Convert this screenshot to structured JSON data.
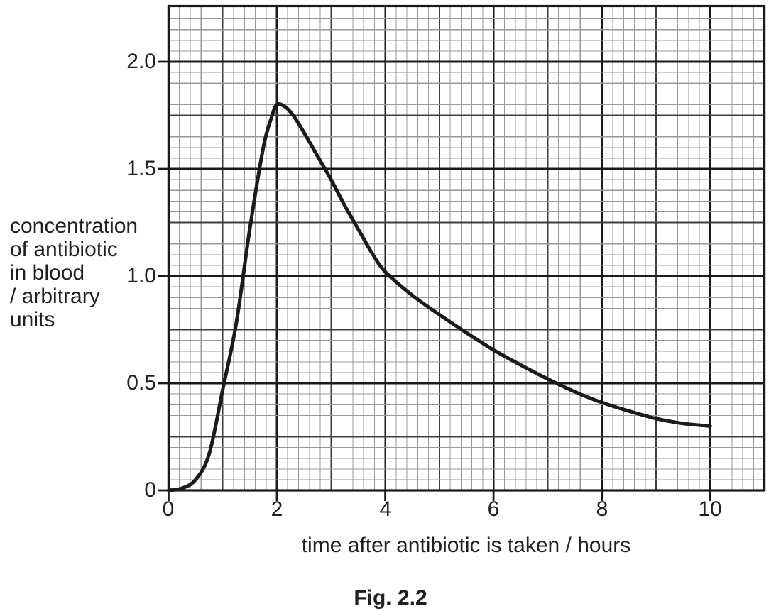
{
  "figure_caption": "Fig. 2.2",
  "colors": {
    "background": "#ffffff",
    "text": "#231f20",
    "curve": "#1c1a1b",
    "grid_minor": "#999999",
    "grid_medium": "#3d3d3d",
    "grid_major": "#1a1a1a",
    "frame": "#1a1a1a"
  },
  "chart_data": {
    "type": "line",
    "title": "",
    "xlabel": "time after antibiotic is taken / hours",
    "ylabel": "concentration of antibiotic in blood / arbitrary units",
    "ylabel_lines": [
      "concentration",
      "of antibiotic",
      "in blood",
      "/ arbitrary",
      "units"
    ],
    "caption": "Fig. 2.2",
    "xlim": [
      0,
      11
    ],
    "ylim": [
      0,
      2.26
    ],
    "x_tick_values": [
      0,
      2,
      4,
      6,
      8,
      10
    ],
    "x_tick_labels": [
      "0",
      "2",
      "4",
      "6",
      "8",
      "10"
    ],
    "y_tick_values": [
      2.0,
      1.5,
      1.0,
      0.5,
      0
    ],
    "y_tick_labels": [
      "2.0",
      "1.5",
      "1.0",
      "0.5",
      "0"
    ],
    "grid": {
      "visible": true,
      "x_minor_step": 0.2,
      "x_medium_step": 1,
      "x_major_step": 2,
      "y_minor_step": 0.05,
      "y_medium_step": 0.25,
      "y_major_step": 0.5
    },
    "legend": "none",
    "series": [
      {
        "name": "concentration of antibiotic in blood",
        "points": [
          [
            0,
            0
          ],
          [
            0.25,
            0.01
          ],
          [
            0.5,
            0.05
          ],
          [
            0.75,
            0.17
          ],
          [
            1,
            0.47
          ],
          [
            1.25,
            0.78
          ],
          [
            1.5,
            1.22
          ],
          [
            1.75,
            1.6
          ],
          [
            1.9,
            1.74
          ],
          [
            2,
            1.8
          ],
          [
            2.15,
            1.79
          ],
          [
            2.3,
            1.75
          ],
          [
            2.5,
            1.67
          ],
          [
            2.75,
            1.56
          ],
          [
            3,
            1.45
          ],
          [
            3.25,
            1.33
          ],
          [
            3.5,
            1.22
          ],
          [
            3.75,
            1.11
          ],
          [
            4,
            1.02
          ],
          [
            4.5,
            0.91
          ],
          [
            5,
            0.82
          ],
          [
            5.5,
            0.735
          ],
          [
            6,
            0.655
          ],
          [
            6.5,
            0.585
          ],
          [
            7,
            0.52
          ],
          [
            7.5,
            0.46
          ],
          [
            8,
            0.41
          ],
          [
            8.5,
            0.37
          ],
          [
            9,
            0.335
          ],
          [
            9.5,
            0.312
          ],
          [
            10,
            0.3
          ]
        ]
      }
    ],
    "key_points": {
      "start": {
        "t": 0,
        "c": 0
      },
      "peak": {
        "t": 2,
        "c": 1.8
      },
      "end": {
        "t": 10,
        "c": 0.3
      }
    }
  }
}
